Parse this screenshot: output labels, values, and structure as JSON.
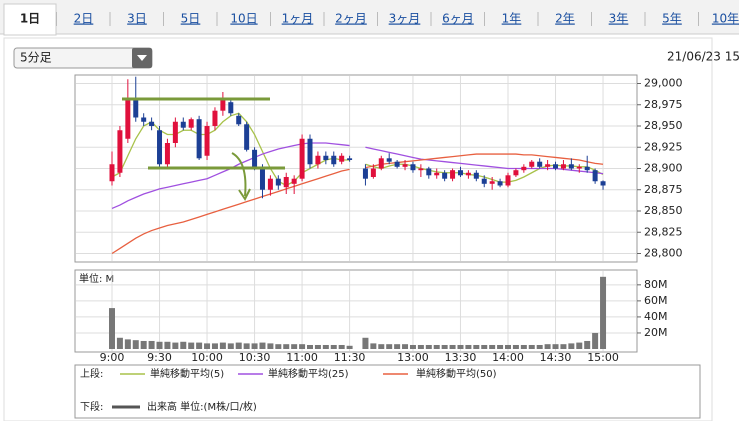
{
  "tabs": [
    "1日",
    "2日",
    "3日",
    "5日",
    "10日",
    "1ヶ月",
    "2ヶ月",
    "3ヶ月",
    "6ヶ月",
    "1年",
    "2年",
    "3年",
    "5年",
    "10年"
  ],
  "dropdown": "5分足",
  "timestamp": "21/06/23 15",
  "legend": {
    "upper": "上段:",
    "lower": "下段:"
  },
  "chart_data": [
    {
      "type": "candlestick",
      "ylim": [
        28790,
        29010
      ],
      "yticks": [
        {
          "value": 28800,
          "label": "28,800"
        },
        {
          "value": 28825,
          "label": "28,825"
        },
        {
          "value": 28850,
          "label": "28,850"
        },
        {
          "value": 28875,
          "label": "28,875"
        },
        {
          "value": 28900,
          "label": "28,900"
        },
        {
          "value": 28925,
          "label": "28,925"
        },
        {
          "value": 28950,
          "label": "28,950"
        },
        {
          "value": 28975,
          "label": "28,975"
        },
        {
          "value": 29000,
          "label": "29,000"
        }
      ],
      "grid": true,
      "up_color": "#e0103c",
      "down_color": "#1c3f95",
      "open": [
        28885,
        28895,
        28935,
        28980,
        28960,
        28955,
        28945,
        28905,
        28930,
        28955,
        28948,
        28958,
        28915,
        28950,
        28968,
        28978,
        28962,
        28952,
        28922,
        28900,
        28875,
        28888,
        28878,
        28882,
        28888,
        28935,
        28905,
        28915,
        28915,
        28908,
        28912,
        null,
        28900,
        28890,
        28900,
        28912,
        28908,
        28902,
        28905,
        28898,
        28900,
        28892,
        28895,
        28888,
        28898,
        28892,
        28895,
        28888,
        28882,
        28885,
        28880,
        28892,
        28898,
        28902,
        28908,
        28902,
        28905,
        28900,
        28905,
        28900,
        28902,
        28898,
        28885
      ],
      "high": [
        28920,
        28950,
        29005,
        29008,
        28965,
        28960,
        28950,
        28935,
        28960,
        28960,
        28960,
        28962,
        28955,
        28972,
        28990,
        28982,
        28965,
        28955,
        28925,
        28905,
        28892,
        28892,
        28895,
        28892,
        28940,
        28940,
        28920,
        28920,
        28920,
        28918,
        28915,
        null,
        28905,
        28905,
        28915,
        28918,
        28910,
        28910,
        28908,
        28905,
        28902,
        28900,
        28898,
        28900,
        28902,
        28898,
        28898,
        28892,
        28890,
        28888,
        28895,
        28900,
        28905,
        28910,
        28912,
        28910,
        28908,
        28910,
        28912,
        28905,
        28915,
        28900,
        28886
      ],
      "low": [
        28880,
        28890,
        28930,
        28955,
        28950,
        28945,
        28900,
        28900,
        28925,
        28945,
        28945,
        28910,
        28910,
        28945,
        28962,
        28962,
        28950,
        28920,
        28898,
        28865,
        28868,
        28875,
        28870,
        28870,
        28885,
        28900,
        28900,
        28905,
        28902,
        28905,
        28908,
        null,
        28880,
        28888,
        28898,
        28905,
        28900,
        28898,
        28895,
        28890,
        28888,
        28888,
        28885,
        28885,
        28890,
        28888,
        28885,
        28878,
        28875,
        28878,
        28878,
        28890,
        28895,
        28900,
        28900,
        28898,
        28898,
        28898,
        28898,
        28895,
        28895,
        28882,
        28875
      ],
      "close": [
        28905,
        28945,
        28980,
        28960,
        28955,
        28950,
        28905,
        28930,
        28955,
        28948,
        28958,
        28912,
        28950,
        28968,
        28980,
        28965,
        28952,
        28922,
        28900,
        28875,
        28888,
        28880,
        28890,
        28888,
        28935,
        28905,
        28915,
        28910,
        28905,
        28915,
        28910,
        null,
        28888,
        28900,
        28912,
        28908,
        28902,
        28905,
        28898,
        28900,
        28892,
        28895,
        28888,
        28898,
        28892,
        28895,
        28888,
        28882,
        28885,
        28880,
        28892,
        28898,
        28902,
        28908,
        28902,
        28905,
        28900,
        28905,
        28900,
        28902,
        28898,
        28885,
        28880
      ],
      "series": [
        {
          "name": "単純移動平均(5)",
          "color": "#a8c24a",
          "values": [
            28890,
            28895,
            28915,
            28935,
            28950,
            28955,
            28945,
            28940,
            28940,
            28945,
            28945,
            28940,
            28940,
            28945,
            28955,
            28962,
            28965,
            28955,
            28940,
            28920,
            28900,
            28885,
            28880,
            28885,
            28895,
            28900,
            28905,
            28910,
            28912,
            28910,
            28910,
            null,
            28905,
            28902,
            28900,
            28903,
            28905,
            28905,
            28903,
            28900,
            28898,
            28896,
            28895,
            28895,
            28895,
            28893,
            28892,
            28890,
            28887,
            28884,
            28884,
            28886,
            28890,
            28895,
            28900,
            28903,
            28904,
            28903,
            28903,
            28902,
            28902,
            28898,
            28893
          ]
        },
        {
          "name": "単純移動平均(25)",
          "color": "#a050e0",
          "values": [
            28853,
            28857,
            28862,
            28866,
            28870,
            28873,
            28876,
            28878,
            28880,
            28882,
            28884,
            28886,
            28888,
            28892,
            28896,
            28900,
            28905,
            28909,
            28913,
            28917,
            28920,
            28923,
            28925,
            28927,
            28929,
            28930,
            28930,
            28930,
            28929,
            28928,
            28927,
            null,
            28925,
            28923,
            28921,
            28919,
            28917,
            28915,
            28913,
            28911,
            28910,
            28909,
            28908,
            28907,
            28906,
            28905,
            28904,
            28903,
            28902,
            28901,
            28900,
            28900,
            28900,
            28900,
            28900,
            28900,
            28900,
            28899,
            28898,
            28897,
            28896,
            28895,
            28894
          ]
        },
        {
          "name": "単純移動平均(50)",
          "color": "#e86040",
          "values": [
            28800,
            28806,
            28812,
            28818,
            28823,
            28827,
            28830,
            28833,
            28835,
            28837,
            28840,
            28843,
            28846,
            28849,
            28852,
            28855,
            28858,
            28861,
            28864,
            28867,
            28870,
            28873,
            28876,
            28879,
            28882,
            28885,
            28888,
            28891,
            28894,
            28897,
            28899,
            null,
            28901,
            28903,
            28905,
            28906,
            28907,
            28908,
            28909,
            28910,
            28911,
            28912,
            28913,
            28914,
            28915,
            28916,
            28917,
            28917,
            28917,
            28917,
            28917,
            28917,
            28916,
            28916,
            28915,
            28914,
            28913,
            28912,
            28911,
            28910,
            28908,
            28906,
            28905
          ]
        }
      ]
    },
    {
      "type": "bar",
      "title": "単位: M",
      "series_name": "出来高 単位:(M株/口/枚)",
      "color": "#777777",
      "ylim": [
        0,
        96
      ],
      "yticks": [
        {
          "value": 20,
          "label": "20M"
        },
        {
          "value": 40,
          "label": "40M"
        },
        {
          "value": 60,
          "label": "60M"
        },
        {
          "value": 80,
          "label": "80M"
        }
      ],
      "grid": true,
      "categories": [
        "9:00",
        null,
        null,
        null,
        null,
        null,
        "9:30",
        null,
        null,
        null,
        null,
        null,
        "10:00",
        null,
        null,
        null,
        null,
        null,
        "10:30",
        null,
        null,
        null,
        null,
        null,
        "11:00",
        null,
        null,
        null,
        null,
        null,
        "11:30",
        null,
        null,
        null,
        null,
        null,
        null,
        null,
        "13:00",
        null,
        null,
        null,
        null,
        null,
        "13:30",
        null,
        null,
        null,
        null,
        null,
        "14:00",
        null,
        null,
        null,
        null,
        null,
        "14:30",
        null,
        null,
        null,
        null,
        null,
        "15:00"
      ],
      "values": [
        51,
        14,
        12,
        11,
        10,
        10,
        9,
        9,
        8,
        9,
        8,
        8,
        7,
        7,
        8,
        7,
        8,
        7,
        7,
        8,
        7,
        6,
        6,
        6,
        6,
        5,
        5,
        5,
        5,
        5,
        4,
        null,
        14,
        7,
        6,
        6,
        6,
        6,
        5,
        5,
        5,
        5,
        5,
        5,
        5,
        5,
        5,
        5,
        5,
        5,
        5,
        5,
        5,
        5,
        5,
        6,
        6,
        6,
        7,
        8,
        10,
        20,
        90
      ]
    }
  ]
}
